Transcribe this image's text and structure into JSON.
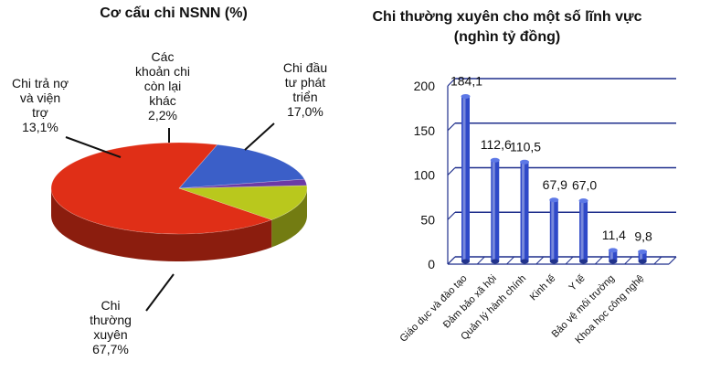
{
  "chart_data": [
    {
      "type": "pie",
      "title": "Cơ cấu chi NSNN (%)",
      "slices": [
        {
          "label_lines": [
            "Chi đầu",
            "tư phát",
            "triển",
            "17,0%"
          ],
          "value": 17.0,
          "color": "#3b5fc8"
        },
        {
          "label_lines": [
            "Chi",
            "thường",
            "xuyên",
            "67,7%"
          ],
          "value": 67.7,
          "color": "#e02f17"
        },
        {
          "label_lines": [
            "Chi trả nợ",
            "và viện",
            "trợ",
            "13,1%"
          ],
          "value": 13.1,
          "color": "#b9c81d"
        },
        {
          "label_lines": [
            "Các",
            "khoản chi",
            "còn lại",
            "khác",
            "2,2%"
          ],
          "value": 2.2,
          "color": "#6b3aa6"
        }
      ]
    },
    {
      "type": "bar",
      "title_lines": [
        "Chi thường xuyên cho một số lĩnh vực",
        "(nghìn tỷ đồng)"
      ],
      "categories": [
        "Giáo dục và đào tạo",
        "Đảm bảo xã hội",
        "Quản lý hành chính",
        "Kinh tế",
        "Y tế",
        "Bảo vệ môi trường",
        "Khoa học công nghệ"
      ],
      "values": [
        184.1,
        112.6,
        110.5,
        67.9,
        67.0,
        11.4,
        9.8
      ],
      "value_labels": [
        "184,1",
        "112,6",
        "110,5",
        "67,9",
        "67,0",
        "11,4",
        "9,8"
      ],
      "yticks": [
        0,
        50,
        100,
        150,
        200
      ],
      "ylim": [
        0,
        200
      ],
      "bar_color": "#2f49c8",
      "grid": true
    }
  ]
}
